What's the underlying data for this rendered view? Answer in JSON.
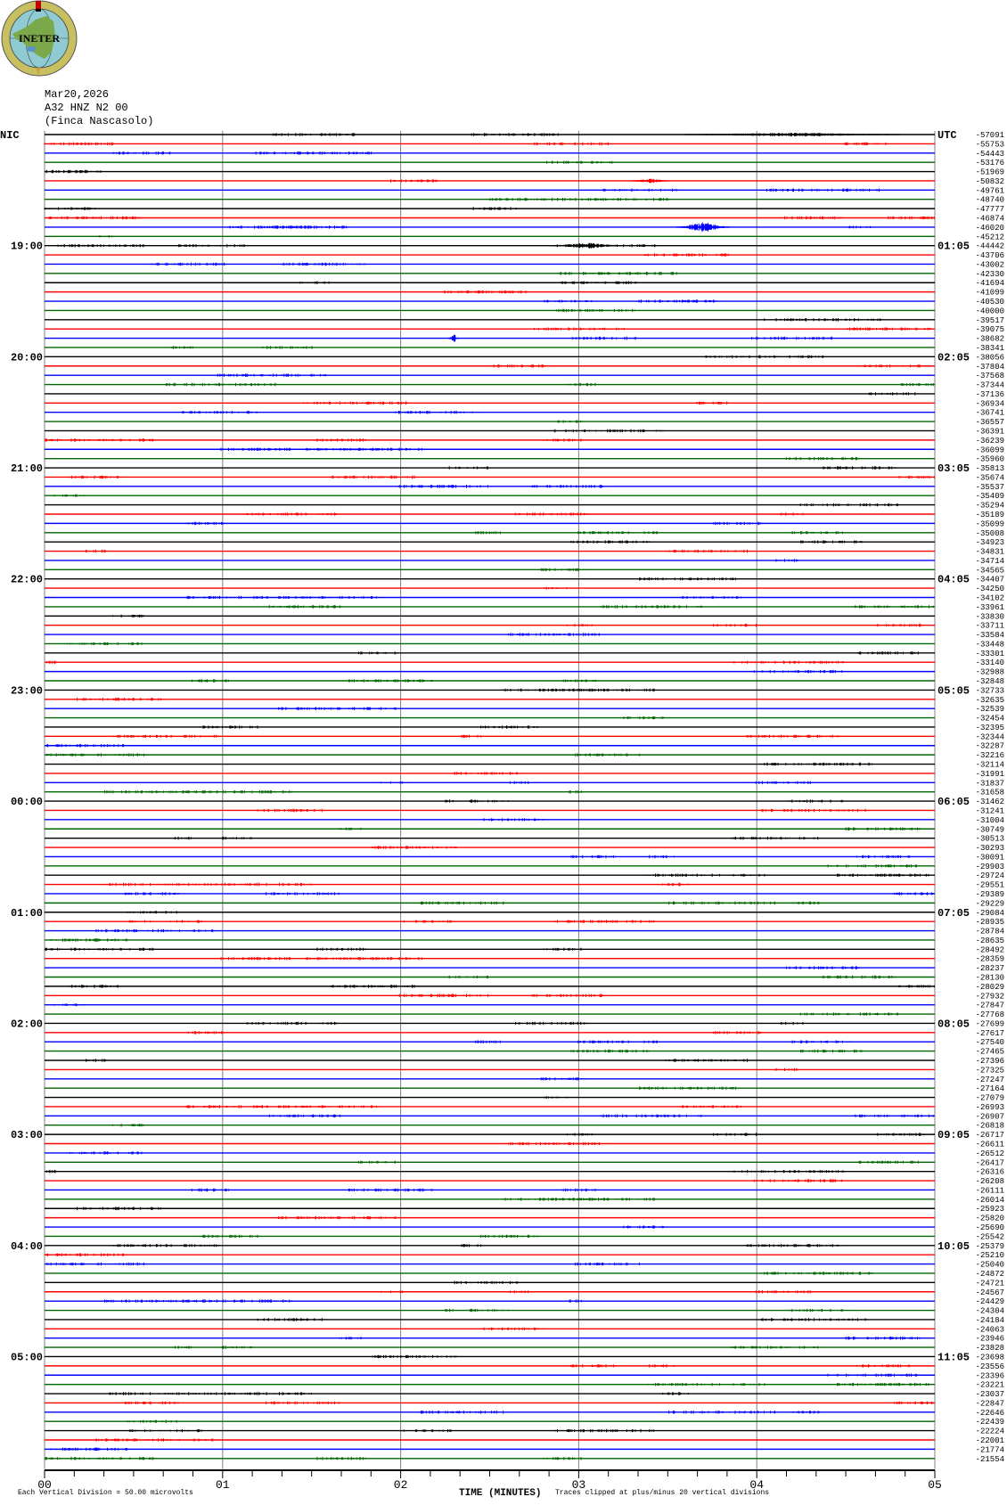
{
  "logo": {
    "text": "INETER"
  },
  "header": {
    "date": "Mar20,2026",
    "channel": "A32 HNZ N2 00",
    "site": "(Finca Nascasolo)"
  },
  "colors": {
    "trace_cycle": [
      "#000000",
      "#ff0000",
      "#0000ff",
      "#006600"
    ],
    "grid": "#808080"
  },
  "chart_data": {
    "type": "line",
    "subtype": "helicorder",
    "left_zone_label": "NIC",
    "right_zone_label": "UTC",
    "left_time_labels": [
      "19:00",
      "20:00",
      "21:00",
      "22:00",
      "23:00",
      "00:00",
      "01:00",
      "02:00",
      "03:00",
      "04:00",
      "05:00"
    ],
    "right_time_labels": [
      "01:05",
      "02:05",
      "03:05",
      "04:05",
      "05:05",
      "06:05",
      "07:05",
      "08:05",
      "09:05",
      "10:05",
      "11:05"
    ],
    "minutes_per_line": 5,
    "trace_offsets": [
      "-57091",
      "-55753",
      "-54443",
      "-53176",
      "-51969",
      "-50832",
      "-49761",
      "-48740",
      "-47777",
      "-46874",
      "-46020",
      "-45212",
      "-44442",
      "-43706",
      "-43002",
      "-42330",
      "-41694",
      "-41099",
      "-40530",
      "-40000",
      "-39517",
      "-39075",
      "-38682",
      "-38341",
      "-38056",
      "-37804",
      "-37568",
      "-37344",
      "-37136",
      "-36934",
      "-36741",
      "-36557",
      "-36391",
      "-36239",
      "-36099",
      "-35960",
      "-35813",
      "-35674",
      "-35537",
      "-35409",
      "-35294",
      "-35189",
      "-35099",
      "-35008",
      "-34923",
      "-34831",
      "-34714",
      "-34565",
      "-34407",
      "-34250",
      "-34102",
      "-33961",
      "-33830",
      "-33711",
      "-33584",
      "-33448",
      "-33301",
      "-33140",
      "-32988",
      "-32848",
      "-32733",
      "-32635",
      "-32539",
      "-32454",
      "-32395",
      "-32344",
      "-32287",
      "-32216",
      "-32114",
      "-31991",
      "-31837",
      "-31658",
      "-31462",
      "-31241",
      "-31004",
      "-30749",
      "-30513",
      "-30293",
      "-30091",
      "-29903",
      "-29724",
      "-29551",
      "-29389",
      "-29229",
      "-29084",
      "-28935",
      "-28784",
      "-28635",
      "-28492",
      "-28359",
      "-28237",
      "-28130",
      "-28029",
      "-27932",
      "-27847",
      "-27768",
      "-27699",
      "-27617",
      "-27540",
      "-27465",
      "-27396",
      "-27325",
      "-27247",
      "-27164",
      "-27079",
      "-26993",
      "-26907",
      "-26818",
      "-26717",
      "-26611",
      "-26512",
      "-26417",
      "-26316",
      "-26208",
      "-26111",
      "-26014",
      "-25923",
      "-25820",
      "-25690",
      "-25542",
      "-25379",
      "-25210",
      "-25040",
      "-24872",
      "-24721",
      "-24567",
      "-24429",
      "-24304",
      "-24184",
      "-24063",
      "-23946",
      "-23828",
      "-23698",
      "-23556",
      "-23396",
      "-23221",
      "-23037",
      "-22847",
      "-22646",
      "-22439",
      "-22224",
      "-22001",
      "-21774",
      "-21554"
    ],
    "x_ticks": [
      "00",
      "01",
      "02",
      "03",
      "04",
      "05"
    ],
    "xlim": [
      0,
      5
    ],
    "xlabel": "TIME (MINUTES)",
    "grid": true,
    "scale_note": "Each Vertical Division =    50.00 microvolts",
    "clip_note": "Traces clipped at plus/minus 20 vertical divisions"
  }
}
